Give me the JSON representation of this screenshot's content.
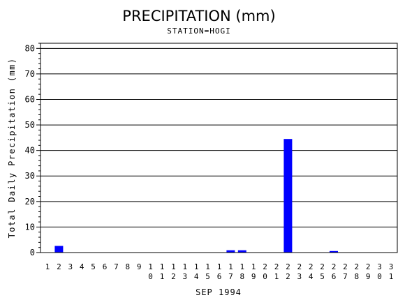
{
  "chart_data": {
    "type": "bar",
    "title": "PRECIPITATION (mm)",
    "subtitle": "STATION=HOGI",
    "xlabel": "SEP 1994",
    "ylabel": "Total Daily Precipitation (mm)",
    "ylim": [
      0,
      82
    ],
    "yticks": [
      0,
      10,
      20,
      30,
      40,
      50,
      60,
      70,
      80
    ],
    "grid": true,
    "legend": "none",
    "bar_color": "#0000ff",
    "categories": [
      "1",
      "2",
      "3",
      "4",
      "5",
      "6",
      "7",
      "8",
      "9",
      "10",
      "11",
      "12",
      "13",
      "14",
      "15",
      "16",
      "17",
      "18",
      "19",
      "20",
      "21",
      "22",
      "23",
      "24",
      "25",
      "26",
      "27",
      "28",
      "29",
      "30",
      "31"
    ],
    "values": [
      0,
      2.6,
      0,
      0,
      0,
      0,
      0,
      0,
      0,
      0,
      0,
      0,
      0,
      0,
      0,
      0,
      0.9,
      0.9,
      0,
      0,
      0,
      44.5,
      0,
      0,
      0,
      0.6,
      0,
      0,
      0,
      0,
      0
    ]
  }
}
